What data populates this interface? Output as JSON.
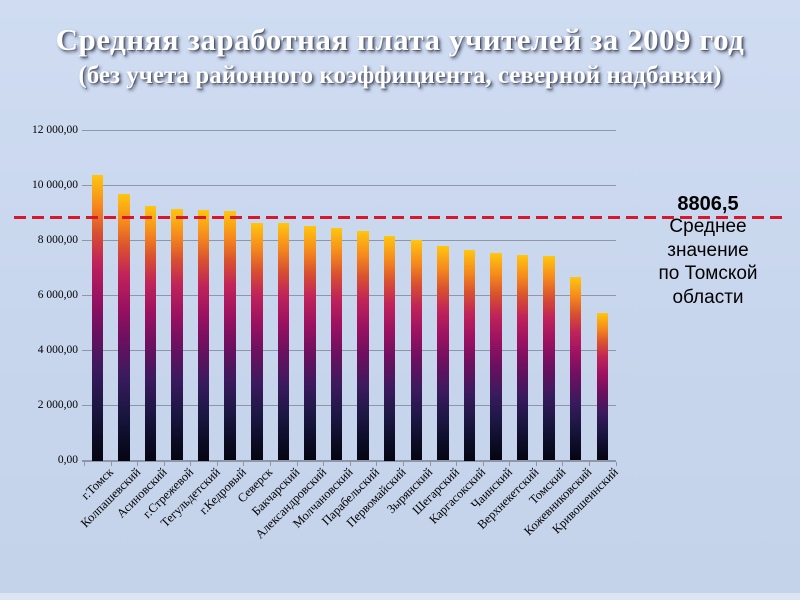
{
  "slide": {
    "title_line1": "Средняя заработная плата учителей за 2009 год",
    "title_line2": "(без учета районного коэффициента, северной надбавки)"
  },
  "annotation": {
    "value": "8806,5",
    "lines": [
      "Среднее",
      "значение",
      "по Томской",
      "области"
    ]
  },
  "colors": {
    "background": "#c9d6ed",
    "gridline": "#8e96a8",
    "reference_line": "#d6182e",
    "title_text": "#ffffff",
    "axis_text": "#000000",
    "bar_top": "#ffc60e",
    "bar_middle": "#9c1161",
    "bar_bottom": "#060512"
  },
  "chart_data": {
    "type": "bar",
    "title": "Средняя заработная плата учителей за 2009 год (без учета районного коэффициента, северной надбавки)",
    "xlabel": "",
    "ylabel": "",
    "ylim": [
      0,
      12000
    ],
    "grid": true,
    "categories": [
      "г.Томск",
      "Колпашевский",
      "Асиновский",
      "г.Стрежевой",
      "Тегульдетский",
      "г.Кедровый",
      "Северск",
      "Бакчарский",
      "Александровский",
      "Молчановский",
      "Парабельский",
      "Первомайский",
      "Зырянский",
      "Шегарский",
      "Каргасокский",
      "Чаинский",
      "Верхнекетский",
      "Томский",
      "Кожевниковский",
      "Кривошеинский"
    ],
    "values": [
      10400,
      9700,
      9250,
      9140,
      9100,
      9080,
      8640,
      8620,
      8540,
      8470,
      8340,
      8150,
      8030,
      7790,
      7650,
      7530,
      7480,
      7430,
      6690,
      5370
    ],
    "yticks": [
      12000,
      10000,
      8000,
      6000,
      4000,
      2000,
      0
    ],
    "ytick_labels": [
      "12 000,00",
      "10 000,00",
      "8 000,00",
      "6 000,00",
      "4 000,00",
      "2 000,00",
      "0,00"
    ],
    "reference_line": {
      "value": 8806.5,
      "label": "8806,5",
      "caption": "Среднее значение по Томской области",
      "style": "dashed",
      "color": "#d6182e"
    }
  }
}
